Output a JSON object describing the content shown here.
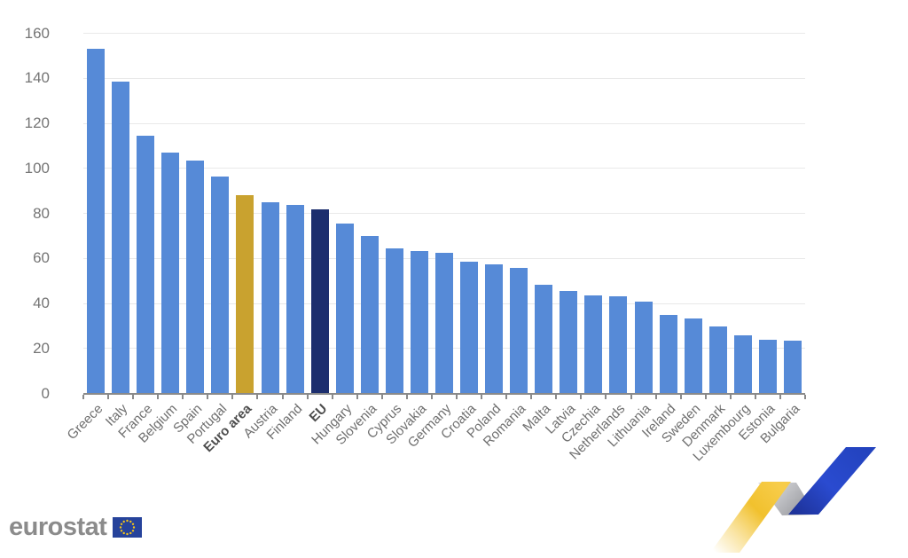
{
  "chart_data": {
    "type": "bar",
    "title": "",
    "xlabel": "",
    "ylabel": "",
    "categories": [
      "Greece",
      "Italy",
      "France",
      "Belgium",
      "Spain",
      "Portugal",
      "Euro area",
      "Austria",
      "Finland",
      "EU",
      "Hungary",
      "Slovenia",
      "Cyprus",
      "Slovakia",
      "Germany",
      "Croatia",
      "Poland",
      "Romania",
      "Malta",
      "Latvia",
      "Czechia",
      "Netherlands",
      "Lithuania",
      "Ireland",
      "Sweden",
      "Denmark",
      "Luxembourg",
      "Estonia",
      "Bulgaria"
    ],
    "values": [
      153.2,
      138.4,
      114.4,
      106.9,
      103.6,
      96.5,
      88.1,
      85.0,
      83.6,
      81.9,
      75.4,
      70.0,
      64.5,
      63.2,
      62.5,
      58.6,
      57.3,
      55.7,
      48.3,
      45.4,
      43.5,
      43.2,
      40.8,
      35.0,
      33.4,
      29.7,
      26.0,
      23.8,
      23.5
    ],
    "bold_categories": [
      "Euro area",
      "EU"
    ],
    "bar_colors": {
      "default": "#568AD7",
      "Euro area": "#C9A22F",
      "EU": "#1C2E6E"
    },
    "ylim": [
      0,
      160
    ],
    "ytick_step": 20,
    "grid": true,
    "legend": "none"
  },
  "branding": {
    "logo_text": "eurostat",
    "logo_text_color": "#8B8B8B",
    "flag_blue": "#26439B",
    "flag_star_yellow": "#F5C518",
    "ribbon_yellow": "#F2C233",
    "ribbon_gray": "#B9BABE",
    "ribbon_blue": "#2847CD"
  }
}
